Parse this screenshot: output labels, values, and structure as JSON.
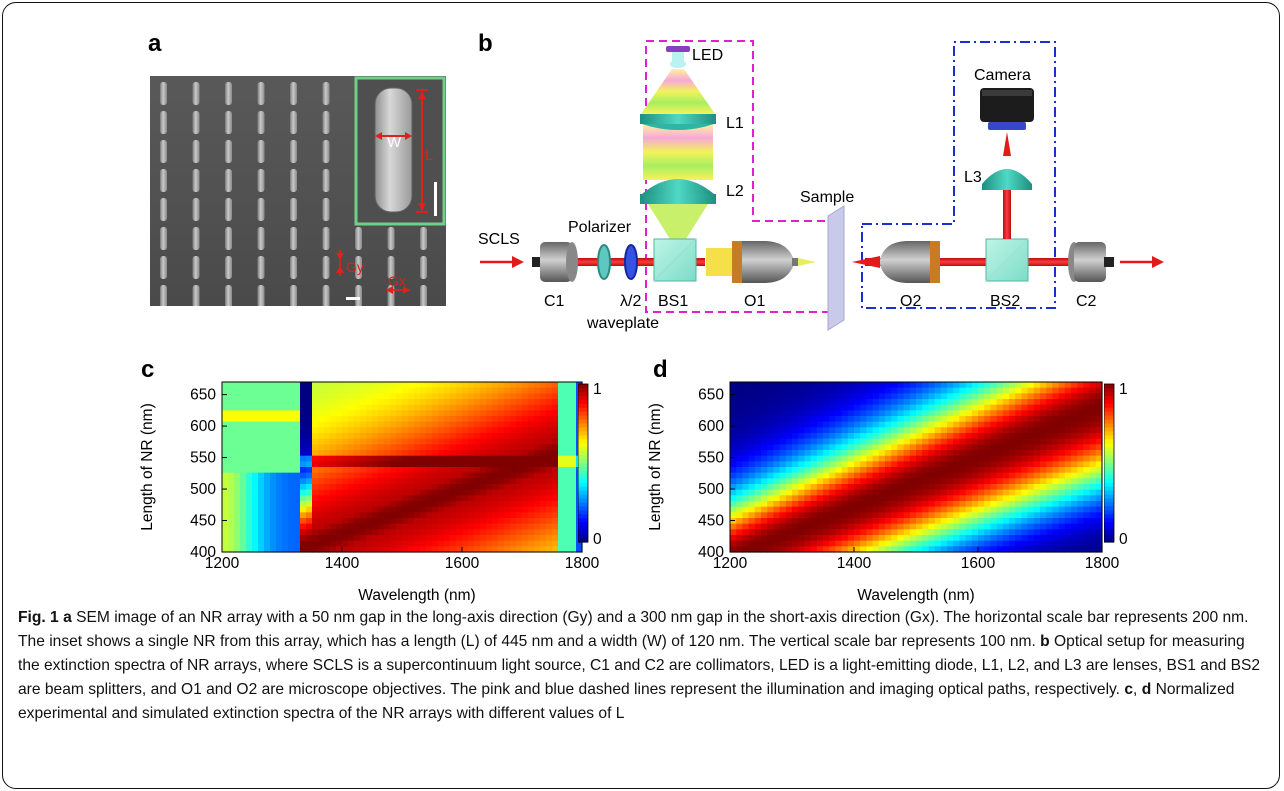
{
  "panels": {
    "a": "a",
    "b": "b",
    "c": "c",
    "d": "d"
  },
  "panel_a": {
    "labels": {
      "W": "W",
      "L": "L",
      "Gy": "Gy",
      "Gx": "Gx"
    },
    "colors": {
      "inset_border": "#6fd08a",
      "annotation": "#e0201b"
    }
  },
  "panel_b": {
    "labels": {
      "led": "LED",
      "l1": "L1",
      "l2": "L2",
      "l3": "L3",
      "camera": "Camera",
      "sample": "Sample",
      "scls": "SCLS",
      "polarizer": "Polarizer",
      "c1": "C1",
      "c2": "C2",
      "waveplate_line1": "λ/2",
      "waveplate_line2": "waveplate",
      "bs1": "BS1",
      "bs2": "BS2",
      "o1": "O1",
      "o2": "O2"
    },
    "colors": {
      "illumination_path": "#e020d0",
      "imaging_path": "#1a2fd0",
      "beam": "#e21a1a"
    }
  },
  "chart_data": [
    {
      "type": "heatmap",
      "panel": "c",
      "xlabel": "Wavelength (nm)",
      "ylabel": "Length of NR (nm)",
      "xlim": [
        1200,
        1800
      ],
      "ylim": [
        400,
        670
      ],
      "xticks": [
        1200,
        1400,
        1600,
        1800
      ],
      "yticks": [
        400,
        450,
        500,
        550,
        600,
        650
      ],
      "colorbar": {
        "min": 0,
        "max": 1,
        "ticks": [
          0,
          1
        ],
        "colormap": "jet"
      }
    },
    {
      "type": "heatmap",
      "panel": "d",
      "xlabel": "Wavelength (nm)",
      "ylabel": "Length of NR (nm)",
      "xlim": [
        1200,
        1800
      ],
      "ylim": [
        400,
        670
      ],
      "xticks": [
        1200,
        1400,
        1600,
        1800
      ],
      "yticks": [
        400,
        450,
        500,
        550,
        600,
        650
      ],
      "colorbar": {
        "min": 0,
        "max": 1,
        "ticks": [
          0,
          1
        ],
        "colormap": "jet"
      }
    }
  ],
  "caption": {
    "fig": "Fig. 1",
    "a": "a",
    "a_text": " SEM image of an NR array with a 50 nm gap in the long-axis direction (Gy) and a 300 nm gap in the short-axis direction (Gx). The horizontal scale bar represents 200 nm. The inset shows a single NR from this array, which has a length (L) of 445 nm and a width (W) of 120 nm. The vertical scale bar represents 100 nm. ",
    "b": "b",
    "b_text": " Optical setup for measuring the extinction spectra of NR arrays, where SCLS is a supercontinuum light source, C1 and C2 are collimators, LED is a light-emitting diode, L1, L2, and L3 are lenses, BS1 and BS2 are beam splitters, and O1 and O2 are microscope objectives. The pink and blue dashed lines represent the illumination and imaging optical paths, respectively. ",
    "c": "c",
    "sep": ", ",
    "d": "d",
    "cd_text": " Normalized experimental and simulated extinction spectra of the NR arrays with different values of L"
  }
}
